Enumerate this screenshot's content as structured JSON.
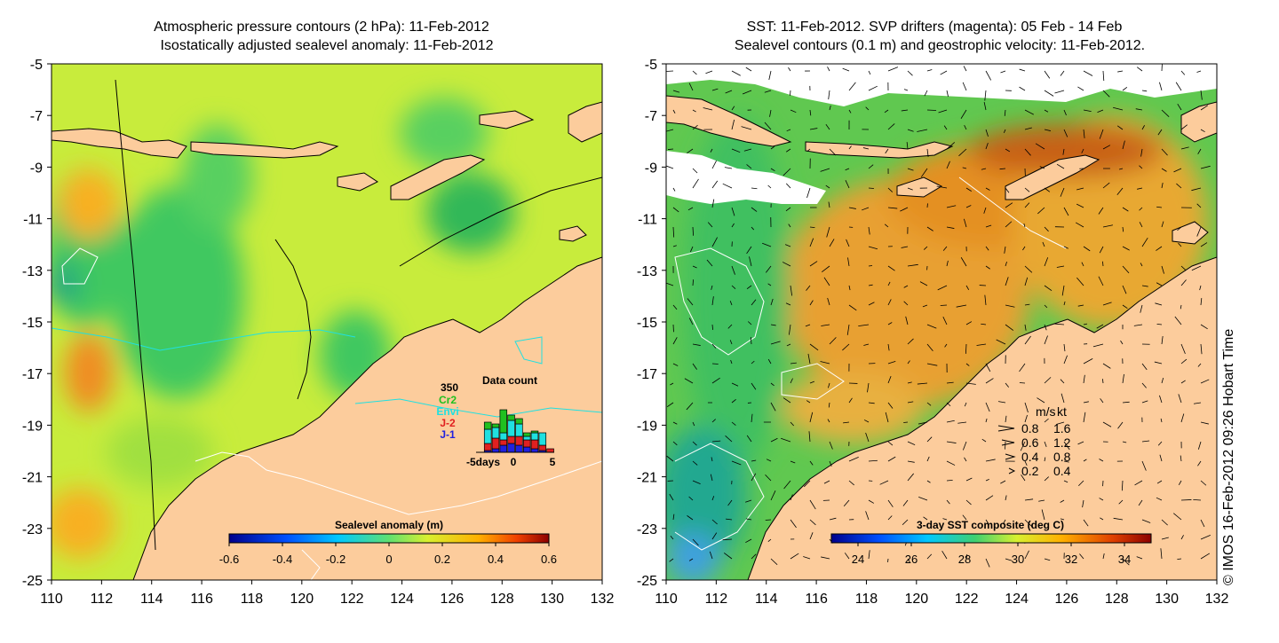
{
  "chart_data": [
    {
      "type": "heatmap",
      "title": "Atmospheric pressure contours (2 hPa): 11-Feb-2012",
      "subtitle": "Isostatically adjusted sealevel anomaly: 11-Feb-2012",
      "xlabel": "",
      "ylabel": "",
      "xlim": [
        110,
        132
      ],
      "ylim": [
        -25,
        -5
      ],
      "x_ticks": [
        110,
        112,
        114,
        116,
        118,
        120,
        122,
        124,
        126,
        128,
        130,
        132
      ],
      "y_ticks": [
        -5,
        -7,
        -9,
        -11,
        -13,
        -15,
        -17,
        -19,
        -21,
        -23,
        -25
      ],
      "colorbar": {
        "label": "Sealevel anomaly (m)",
        "range": [
          -0.6,
          0.6
        ],
        "ticks": [
          -0.6,
          -0.4,
          -0.2,
          0,
          0.2,
          0.4,
          0.6
        ],
        "tick_labels": [
          "-0.6",
          "-0.4",
          "-0.2",
          "0",
          "0.2",
          "0.4",
          "0.6"
        ]
      },
      "inset": {
        "type": "bar",
        "title": "Data count",
        "ymax_label": "350",
        "legend": [
          {
            "name": "Cr2",
            "color": "#20c020"
          },
          {
            "name": "Envi",
            "color": "#20e0e0"
          },
          {
            "name": "J-2",
            "color": "#e02020"
          },
          {
            "name": "J-1",
            "color": "#2020e0"
          }
        ],
        "x_tick_labels": [
          "-5days",
          "0",
          "5"
        ],
        "x": [
          -5,
          -4,
          -3,
          -2,
          -1,
          0,
          1,
          2,
          3,
          4
        ],
        "ymax": 350,
        "series": [
          {
            "name": "J-1",
            "values": [
              0,
              10,
              20,
              40,
              50,
              40,
              30,
              20,
              10,
              0
            ]
          },
          {
            "name": "J-2",
            "values": [
              0,
              40,
              60,
              30,
              40,
              50,
              40,
              50,
              30,
              20
            ]
          },
          {
            "name": "Envi",
            "values": [
              0,
              80,
              60,
              40,
              90,
              70,
              20,
              40,
              70,
              0
            ]
          },
          {
            "name": "Cr2",
            "values": [
              0,
              40,
              20,
              130,
              30,
              30,
              20,
              10,
              0,
              0
            ]
          }
        ]
      }
    },
    {
      "type": "heatmap",
      "title": "SST: 11-Feb-2012. SVP drifters (magenta): 05 Feb - 14 Feb",
      "subtitle": "Sealevel contours (0.1 m) and geostrophic velocity: 11-Feb-2012.",
      "xlabel": "",
      "ylabel": "",
      "xlim": [
        110,
        132
      ],
      "ylim": [
        -25,
        -5
      ],
      "x_ticks": [
        110,
        112,
        114,
        116,
        118,
        120,
        122,
        124,
        126,
        128,
        130,
        132
      ],
      "y_ticks": [
        -5,
        -7,
        -9,
        -11,
        -13,
        -15,
        -17,
        -19,
        -21,
        -23,
        -25
      ],
      "colorbar": {
        "label": "3-day SST composite (deg C)",
        "range": [
          23,
          35
        ],
        "ticks": [
          24,
          26,
          28,
          30,
          32,
          34
        ],
        "tick_labels": [
          "24",
          "26",
          "28",
          "30",
          "32",
          "34"
        ]
      },
      "velocity_key": {
        "header_ms": "m/s",
        "header_kt": "kt",
        "rows": [
          {
            "ms": "0.8",
            "kt": "1.6"
          },
          {
            "ms": "0.6",
            "kt": "1.2"
          },
          {
            "ms": "0.4",
            "kt": "0.8"
          },
          {
            "ms": "0.2",
            "kt": "0.4"
          }
        ]
      }
    }
  ],
  "side_note": "© IMOS 16-Feb-2012 09:26 Hobart Time",
  "colors": {
    "land": "#fccc9c",
    "ocean_green": "#c8ec3c",
    "ocean_deep_green": "#40c860",
    "ocean_orange": "#f8b020",
    "sst_orange": "#e09020",
    "sst_green": "#60c850"
  }
}
